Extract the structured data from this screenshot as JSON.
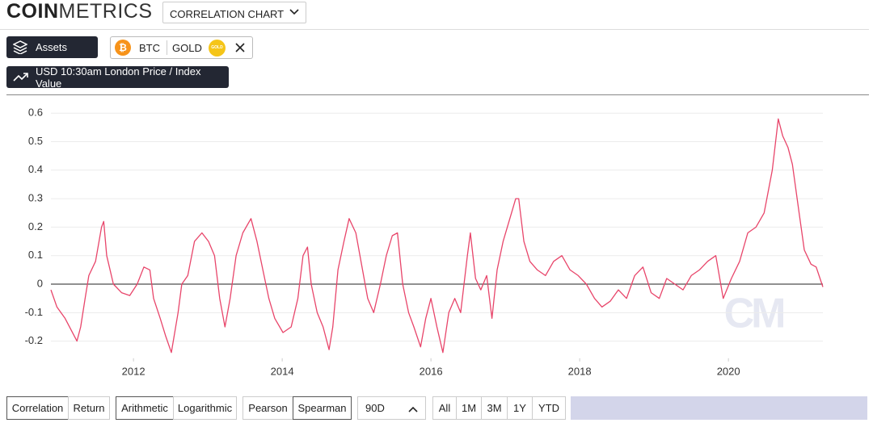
{
  "header": {
    "logo_bold": "COIN",
    "logo_light": "METRICS",
    "view_select": "CORRELATION CHART"
  },
  "toolbar": {
    "assets_button": "Assets",
    "assets": [
      "BTC",
      "GOLD"
    ],
    "gold_icon": "GOLD",
    "price_button": "USD 10:30am London Price / Index Value"
  },
  "chart_data": {
    "type": "line",
    "color": "#e8456a",
    "watermark": "CM",
    "grid": true,
    "xlim": [
      2010.89,
      2021.27
    ],
    "xticks": [
      2012,
      2014,
      2016,
      2018,
      2020
    ],
    "ylim": [
      -0.26,
      0.63
    ],
    "yticks": [
      -0.2,
      -0.1,
      0,
      0.1,
      0.2,
      0.3,
      0.4,
      0.5,
      0.6
    ],
    "x": [
      2010.89,
      2010.97,
      2011.08,
      2011.24,
      2011.29,
      2011.35,
      2011.4,
      2011.49,
      2011.57,
      2011.6,
      2011.64,
      2011.73,
      2011.84,
      2011.95,
      2012.05,
      2012.14,
      2012.22,
      2012.27,
      2012.36,
      2012.43,
      2012.51,
      2012.6,
      2012.65,
      2012.73,
      2012.82,
      2012.92,
      2013.01,
      2013.09,
      2013.16,
      2013.23,
      2013.3,
      2013.38,
      2013.47,
      2013.58,
      2013.66,
      2013.74,
      2013.82,
      2013.9,
      2014.01,
      2014.12,
      2014.21,
      2014.28,
      2014.34,
      2014.39,
      2014.47,
      2014.55,
      2014.63,
      2014.68,
      2014.75,
      2014.83,
      2014.9,
      2014.99,
      2015.08,
      2015.15,
      2015.23,
      2015.32,
      2015.4,
      2015.48,
      2015.55,
      2015.62,
      2015.7,
      2015.77,
      2015.86,
      2015.93,
      2016.0,
      2016.08,
      2016.16,
      2016.24,
      2016.32,
      2016.4,
      2016.49,
      2016.53,
      2016.6,
      2016.67,
      2016.75,
      2016.82,
      2016.89,
      2016.97,
      2017.05,
      2017.14,
      2017.18,
      2017.25,
      2017.33,
      2017.43,
      2017.54,
      2017.65,
      2017.76,
      2017.87,
      2017.98,
      2018.09,
      2018.2,
      2018.3,
      2018.41,
      2018.52,
      2018.63,
      2018.74,
      2018.85,
      2018.96,
      2019.07,
      2019.17,
      2019.28,
      2019.39,
      2019.5,
      2019.61,
      2019.72,
      2019.83,
      2019.93,
      2020.04,
      2020.15,
      2020.26,
      2020.37,
      2020.48,
      2020.59,
      2020.67,
      2020.73,
      2020.8,
      2020.86,
      2020.95,
      2021.02,
      2021.11,
      2021.18,
      2021.27
    ],
    "values": [
      -0.02,
      -0.08,
      -0.12,
      -0.2,
      -0.15,
      -0.05,
      0.03,
      0.08,
      0.2,
      0.22,
      0.1,
      0.0,
      -0.03,
      -0.04,
      0.0,
      0.06,
      0.05,
      -0.05,
      -0.12,
      -0.18,
      -0.24,
      -0.1,
      0.0,
      0.03,
      0.15,
      0.18,
      0.15,
      0.1,
      -0.05,
      -0.15,
      -0.05,
      0.1,
      0.18,
      0.23,
      0.15,
      0.05,
      -0.05,
      -0.12,
      -0.17,
      -0.15,
      -0.05,
      0.1,
      0.13,
      0.0,
      -0.1,
      -0.15,
      -0.23,
      -0.15,
      0.05,
      0.15,
      0.23,
      0.18,
      0.05,
      -0.05,
      -0.1,
      0.0,
      0.1,
      0.17,
      0.18,
      0.0,
      -0.1,
      -0.15,
      -0.22,
      -0.12,
      -0.05,
      -0.15,
      -0.24,
      -0.1,
      -0.05,
      -0.1,
      0.1,
      0.18,
      0.02,
      -0.02,
      0.03,
      -0.12,
      0.05,
      0.15,
      0.22,
      0.3,
      0.3,
      0.15,
      0.08,
      0.05,
      0.03,
      0.08,
      0.1,
      0.05,
      0.03,
      0.0,
      -0.05,
      -0.08,
      -0.06,
      -0.02,
      -0.05,
      0.03,
      0.06,
      -0.03,
      -0.05,
      0.02,
      0.0,
      -0.02,
      0.03,
      0.05,
      0.08,
      0.1,
      -0.05,
      0.02,
      0.08,
      0.18,
      0.2,
      0.25,
      0.4,
      0.58,
      0.52,
      0.48,
      0.42,
      0.25,
      0.12,
      0.07,
      0.06,
      -0.01
    ]
  },
  "controls": {
    "metric": [
      "Correlation",
      "Return"
    ],
    "scale": [
      "Arithmetic",
      "Logarithmic"
    ],
    "method": [
      "Pearson",
      "Spearman"
    ],
    "window": "90D",
    "ranges": [
      "All",
      "1M",
      "3M",
      "1Y",
      "YTD"
    ]
  }
}
